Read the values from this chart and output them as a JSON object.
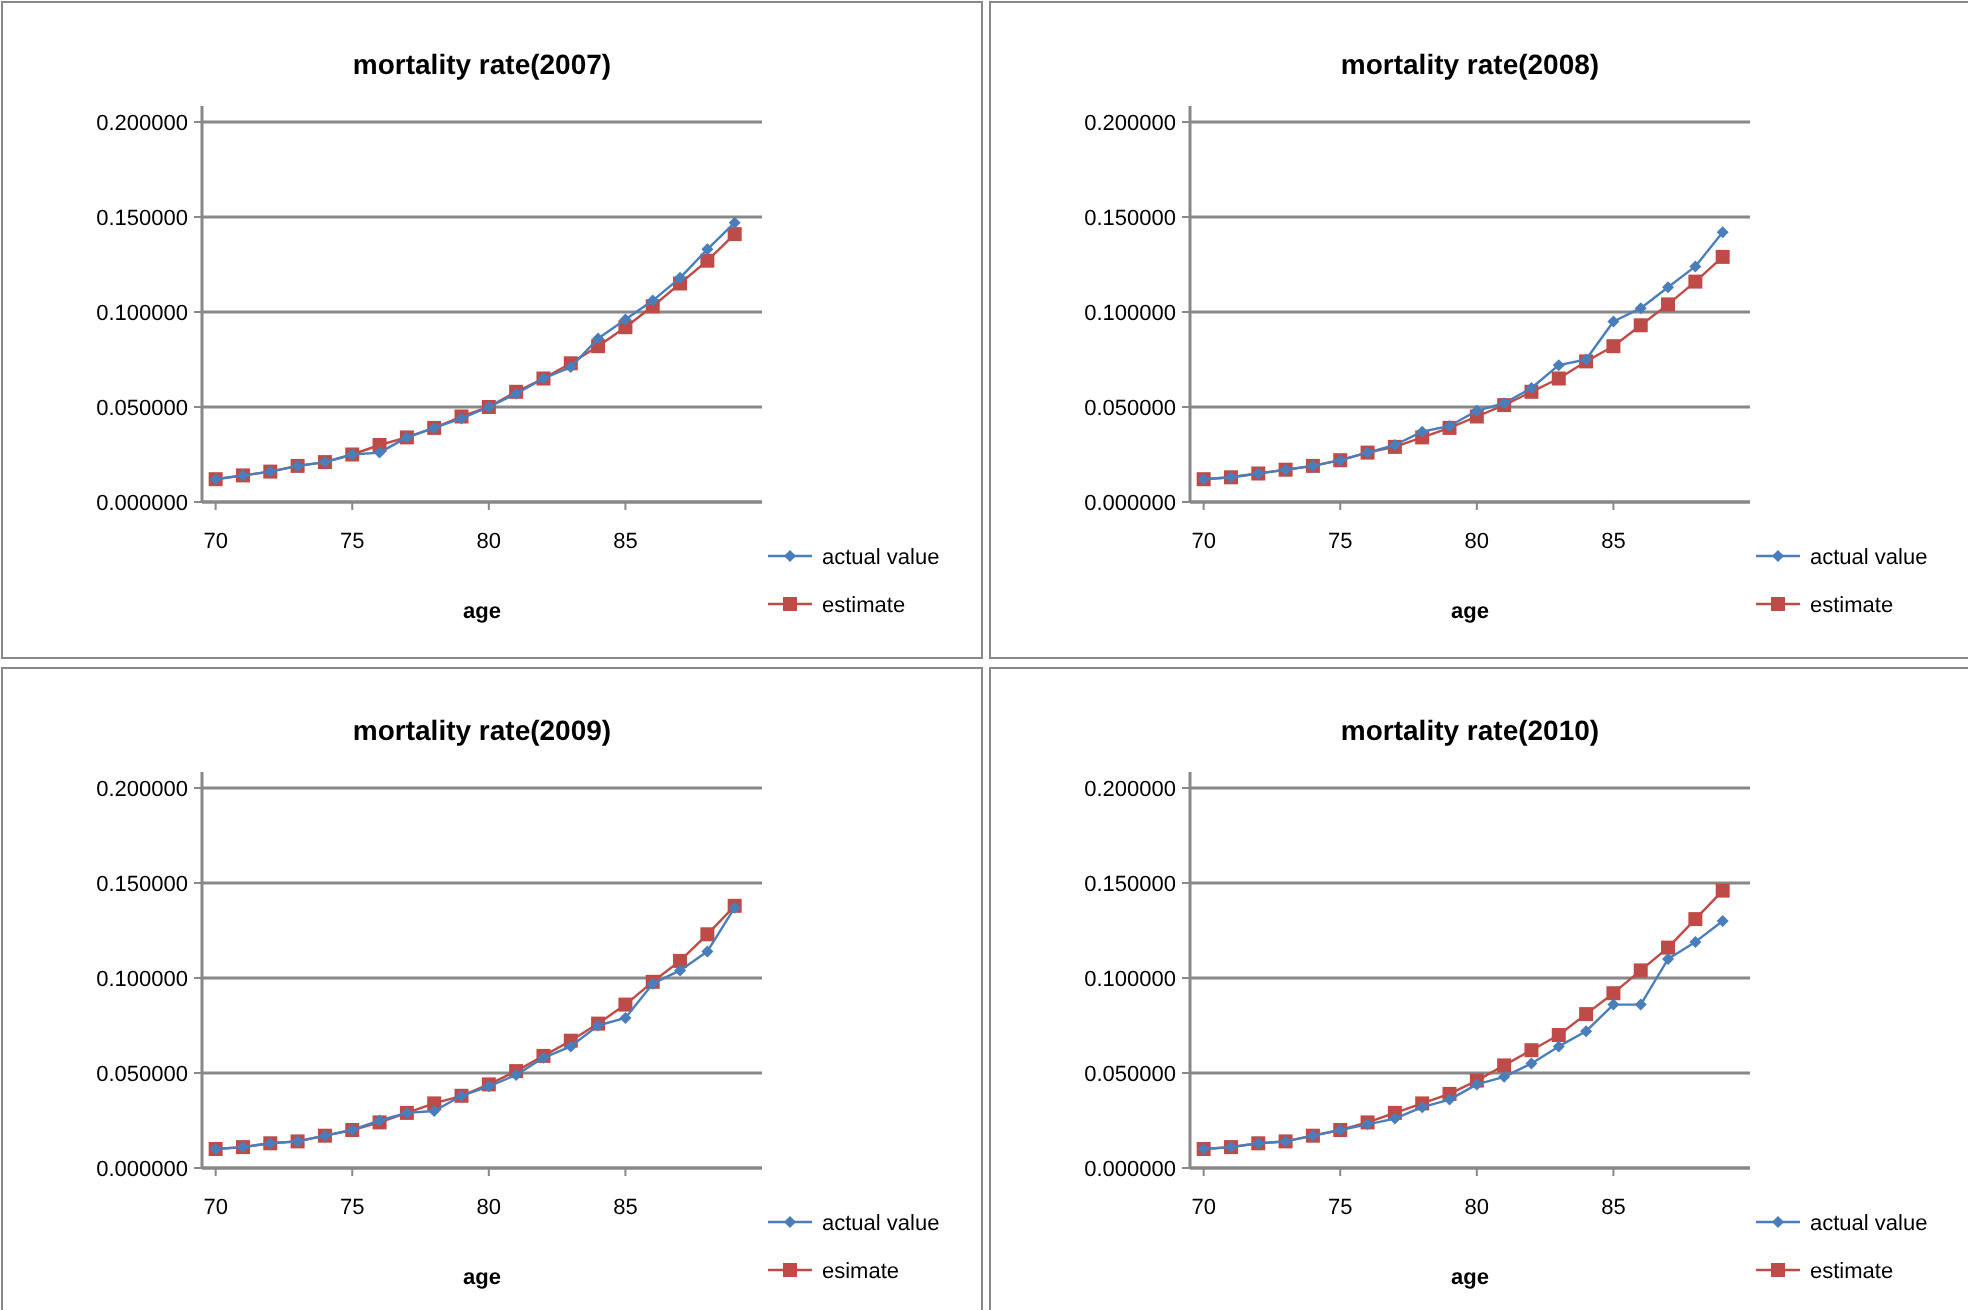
{
  "chart_data": [
    {
      "type": "line",
      "title": "mortality rate(2007)",
      "xlabel": "age",
      "x": [
        70,
        71,
        72,
        73,
        74,
        75,
        76,
        77,
        78,
        79,
        80,
        81,
        82,
        83,
        84,
        85,
        86,
        87,
        88,
        89
      ],
      "xlim": [
        69.5,
        90
      ],
      "xticks": [
        70,
        75,
        80,
        85
      ],
      "ylim": [
        0,
        0.2
      ],
      "yticks": [
        {
          "value": 0,
          "label": "0.000000"
        },
        {
          "value": 0.05,
          "label": "0.050000"
        },
        {
          "value": 0.1,
          "label": "0.100000"
        },
        {
          "value": 0.15,
          "label": "0.150000"
        },
        {
          "value": 0.2,
          "label": "0.200000"
        }
      ],
      "grid": "y",
      "legend": "right",
      "series": [
        {
          "name": "actual value",
          "color": "#4a7ebb",
          "marker": "diamond",
          "values": [
            0.012,
            0.014,
            0.016,
            0.019,
            0.021,
            0.025,
            0.026,
            0.034,
            0.039,
            0.044,
            0.05,
            0.057,
            0.065,
            0.071,
            0.086,
            0.096,
            0.106,
            0.118,
            0.133,
            0.147
          ]
        },
        {
          "name": "estimate",
          "color": "#be4b48",
          "marker": "square",
          "values": [
            0.012,
            0.014,
            0.016,
            0.019,
            0.021,
            0.025,
            0.03,
            0.034,
            0.039,
            0.045,
            0.05,
            0.058,
            0.065,
            0.073,
            0.082,
            0.092,
            0.103,
            0.115,
            0.127,
            0.141
          ]
        }
      ]
    },
    {
      "type": "line",
      "title": "mortality rate(2008)",
      "xlabel": "age",
      "x": [
        70,
        71,
        72,
        73,
        74,
        75,
        76,
        77,
        78,
        79,
        80,
        81,
        82,
        83,
        84,
        85,
        86,
        87,
        88,
        89
      ],
      "xlim": [
        69.5,
        90
      ],
      "xticks": [
        70,
        75,
        80,
        85
      ],
      "ylim": [
        0,
        0.2
      ],
      "yticks": [
        {
          "value": 0,
          "label": "0.000000"
        },
        {
          "value": 0.05,
          "label": "0.050000"
        },
        {
          "value": 0.1,
          "label": "0.100000"
        },
        {
          "value": 0.15,
          "label": "0.150000"
        },
        {
          "value": 0.2,
          "label": "0.200000"
        }
      ],
      "grid": "y",
      "legend": "right",
      "series": [
        {
          "name": "actual value",
          "color": "#4a7ebb",
          "marker": "diamond",
          "values": [
            0.012,
            0.013,
            0.015,
            0.017,
            0.019,
            0.022,
            0.026,
            0.03,
            0.037,
            0.04,
            0.048,
            0.052,
            0.06,
            0.072,
            0.075,
            0.095,
            0.102,
            0.113,
            0.124,
            0.142
          ]
        },
        {
          "name": "estimate",
          "color": "#be4b48",
          "marker": "square",
          "values": [
            0.012,
            0.013,
            0.015,
            0.017,
            0.019,
            0.022,
            0.026,
            0.029,
            0.034,
            0.039,
            0.045,
            0.051,
            0.058,
            0.065,
            0.074,
            0.082,
            0.093,
            0.104,
            0.116,
            0.129
          ]
        }
      ]
    },
    {
      "type": "line",
      "title": "mortality rate(2009)",
      "xlabel": "age",
      "x": [
        70,
        71,
        72,
        73,
        74,
        75,
        76,
        77,
        78,
        79,
        80,
        81,
        82,
        83,
        84,
        85,
        86,
        87,
        88,
        89
      ],
      "xlim": [
        69.5,
        90
      ],
      "xticks": [
        70,
        75,
        80,
        85
      ],
      "ylim": [
        0,
        0.2
      ],
      "yticks": [
        {
          "value": 0,
          "label": "0.000000"
        },
        {
          "value": 0.05,
          "label": "0.050000"
        },
        {
          "value": 0.1,
          "label": "0.100000"
        },
        {
          "value": 0.15,
          "label": "0.150000"
        },
        {
          "value": 0.2,
          "label": "0.200000"
        }
      ],
      "grid": "y",
      "legend": "right",
      "series": [
        {
          "name": "actual value",
          "color": "#4a7ebb",
          "marker": "diamond",
          "values": [
            0.01,
            0.011,
            0.013,
            0.014,
            0.017,
            0.02,
            0.025,
            0.029,
            0.03,
            0.038,
            0.043,
            0.049,
            0.058,
            0.064,
            0.075,
            0.079,
            0.097,
            0.104,
            0.114,
            0.137
          ]
        },
        {
          "name": "esimate",
          "color": "#be4b48",
          "marker": "square",
          "values": [
            0.01,
            0.011,
            0.013,
            0.014,
            0.017,
            0.02,
            0.024,
            0.029,
            0.034,
            0.038,
            0.044,
            0.051,
            0.059,
            0.067,
            0.076,
            0.086,
            0.098,
            0.109,
            0.123,
            0.138
          ]
        }
      ]
    },
    {
      "type": "line",
      "title": "mortality rate(2010)",
      "xlabel": "age",
      "x": [
        70,
        71,
        72,
        73,
        74,
        75,
        76,
        77,
        78,
        79,
        80,
        81,
        82,
        83,
        84,
        85,
        86,
        87,
        88,
        89
      ],
      "xlim": [
        69.5,
        90
      ],
      "xticks": [
        70,
        75,
        80,
        85
      ],
      "ylim": [
        0,
        0.2
      ],
      "yticks": [
        {
          "value": 0,
          "label": "0.000000"
        },
        {
          "value": 0.05,
          "label": "0.050000"
        },
        {
          "value": 0.1,
          "label": "0.100000"
        },
        {
          "value": 0.15,
          "label": "0.150000"
        },
        {
          "value": 0.2,
          "label": "0.200000"
        }
      ],
      "grid": "y",
      "legend": "right",
      "series": [
        {
          "name": "actual value",
          "color": "#4a7ebb",
          "marker": "diamond",
          "values": [
            0.01,
            0.011,
            0.013,
            0.014,
            0.017,
            0.02,
            0.023,
            0.026,
            0.032,
            0.036,
            0.044,
            0.048,
            0.055,
            0.064,
            0.072,
            0.086,
            0.086,
            0.11,
            0.119,
            0.13
          ]
        },
        {
          "name": "estimate",
          "color": "#be4b48",
          "marker": "square",
          "values": [
            0.01,
            0.011,
            0.013,
            0.014,
            0.017,
            0.02,
            0.024,
            0.029,
            0.034,
            0.039,
            0.046,
            0.054,
            0.062,
            0.07,
            0.081,
            0.092,
            0.104,
            0.116,
            0.131,
            0.146
          ]
        }
      ]
    }
  ]
}
